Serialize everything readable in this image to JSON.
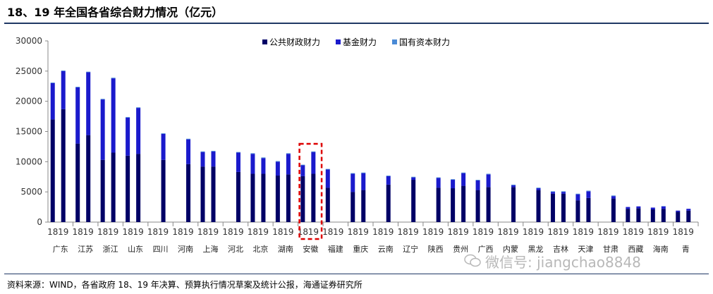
{
  "title": "18、19 年全国各省综合财力情况（亿元）",
  "source": "资料来源：WIND，各省政府 18、19 年决算、预算执行情况草案及统计公报，海通证券研究所",
  "watermark": "微信号: jiangchao8848",
  "colors": {
    "public": "#000066",
    "fund": "#1a1acc",
    "state": "#4a8ad6",
    "highlight": "#dd0000",
    "axis": "#888888",
    "title_rule": "#1f3864"
  },
  "chart_data": {
    "type": "bar",
    "stacked": true,
    "title": "",
    "xlabel": "",
    "ylabel": "",
    "ylim": [
      0,
      30000
    ],
    "yticks": [
      0,
      5000,
      10000,
      15000,
      20000,
      25000,
      30000
    ],
    "legend": {
      "placement": "top-center",
      "entries": [
        "公共财政财力",
        "基金财力",
        "国有资本财力"
      ]
    },
    "highlight_province": "安徽",
    "provinces": [
      "广东",
      "江苏",
      "浙江",
      "山东",
      "四川",
      "河南",
      "上海",
      "河北",
      "北京",
      "湖南",
      "安徽",
      "福建",
      "重庆",
      "云南",
      "辽宁",
      "陕西",
      "贵州",
      "广西",
      "内蒙",
      "黑龙",
      "吉林",
      "天津",
      "甘肃",
      "西藏",
      "海南",
      "青"
    ],
    "years": [
      "18",
      "19"
    ],
    "series": [
      {
        "name": "公共财政财力",
        "values": [
          [
            17000,
            18700
          ],
          [
            13000,
            14400
          ],
          [
            10300,
            11500
          ],
          [
            11000,
            11300
          ],
          [
            null,
            10300
          ],
          [
            null,
            9600
          ],
          [
            9200,
            9200
          ],
          [
            null,
            8300
          ],
          [
            8000,
            8000
          ],
          [
            7700,
            7900
          ],
          [
            7600,
            8000
          ],
          [
            5700,
            null
          ],
          [
            5000,
            5300
          ],
          [
            null,
            6200
          ],
          [
            null,
            7000
          ],
          [
            null,
            5700
          ],
          [
            5600,
            6000
          ],
          [
            5300,
            5800
          ],
          [
            null,
            5800
          ],
          [
            null,
            5300
          ],
          [
            4700,
            4700
          ],
          [
            3600,
            4000
          ],
          [
            null,
            3900
          ],
          [
            2200,
            2300
          ],
          [
            2100,
            2200
          ],
          [
            1700,
            1900
          ]
        ]
      },
      {
        "name": "基金财力",
        "values": [
          [
            6000,
            6300
          ],
          [
            9300,
            10400
          ],
          [
            10000,
            12300
          ],
          [
            6300,
            7600
          ],
          [
            null,
            4300
          ],
          [
            null,
            4100
          ],
          [
            2400,
            2500
          ],
          [
            null,
            3200
          ],
          [
            3300,
            2600
          ],
          [
            2300,
            3400
          ],
          [
            1800,
            3600
          ],
          [
            3000,
            null
          ],
          [
            3000,
            2800
          ],
          [
            null,
            1400
          ],
          [
            null,
            400
          ],
          [
            null,
            1600
          ],
          [
            1400,
            2100
          ],
          [
            1600,
            2100
          ],
          [
            null,
            300
          ],
          [
            null,
            300
          ],
          [
            300,
            300
          ],
          [
            1000,
            1100
          ],
          [
            null,
            400
          ],
          [
            300,
            300
          ],
          [
            300,
            400
          ],
          [
            200,
            300
          ]
        ]
      },
      {
        "name": "国有资本财力",
        "values": [
          [
            100,
            100
          ],
          [
            100,
            100
          ],
          [
            100,
            100
          ],
          [
            100,
            100
          ],
          [
            null,
            100
          ],
          [
            null,
            100
          ],
          [
            100,
            100
          ],
          [
            null,
            100
          ],
          [
            100,
            100
          ],
          [
            100,
            100
          ],
          [
            100,
            100
          ],
          [
            100,
            null
          ],
          [
            100,
            100
          ],
          [
            null,
            100
          ],
          [
            null,
            100
          ],
          [
            null,
            100
          ],
          [
            100,
            100
          ],
          [
            100,
            100
          ],
          [
            null,
            100
          ],
          [
            null,
            100
          ],
          [
            100,
            100
          ],
          [
            100,
            100
          ],
          [
            null,
            100
          ],
          [
            0,
            0
          ],
          [
            0,
            50
          ],
          [
            0,
            0
          ]
        ]
      }
    ]
  }
}
